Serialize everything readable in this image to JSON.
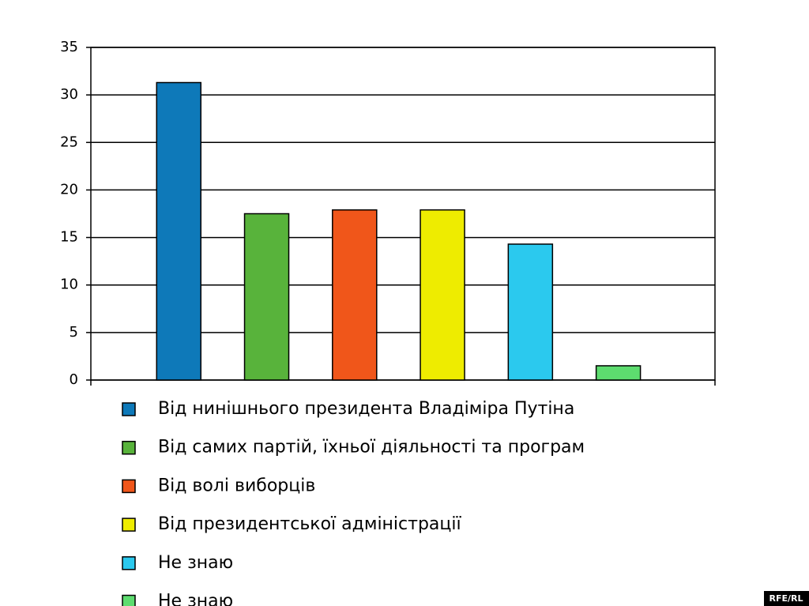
{
  "chart_data": {
    "type": "bar",
    "categories": [
      null
    ],
    "series": [
      {
        "name": "Від нинішнього президента Владіміра Путіна",
        "color": "#0e79b9",
        "values": [
          31.3
        ]
      },
      {
        "name": "Від самих партій, їхньої діяльності та програм",
        "color": "#58b33b",
        "values": [
          17.5
        ]
      },
      {
        "name": "Від волі виборців",
        "color": "#f0561a",
        "values": [
          17.9
        ]
      },
      {
        "name": "Від президентської адміністрації",
        "color": "#eeec00",
        "values": [
          17.9
        ]
      },
      {
        "name": "Не знаю",
        "color": "#2bc9ee",
        "values": [
          14.3
        ]
      },
      {
        "name": "Не знаю",
        "color": "#5ddc6f",
        "values": [
          1.5
        ]
      }
    ],
    "ylim": [
      0,
      35
    ],
    "yticks": [
      0,
      5,
      10,
      15,
      20,
      25,
      30,
      35
    ],
    "grid": true,
    "watermark": "RFE/RL"
  }
}
